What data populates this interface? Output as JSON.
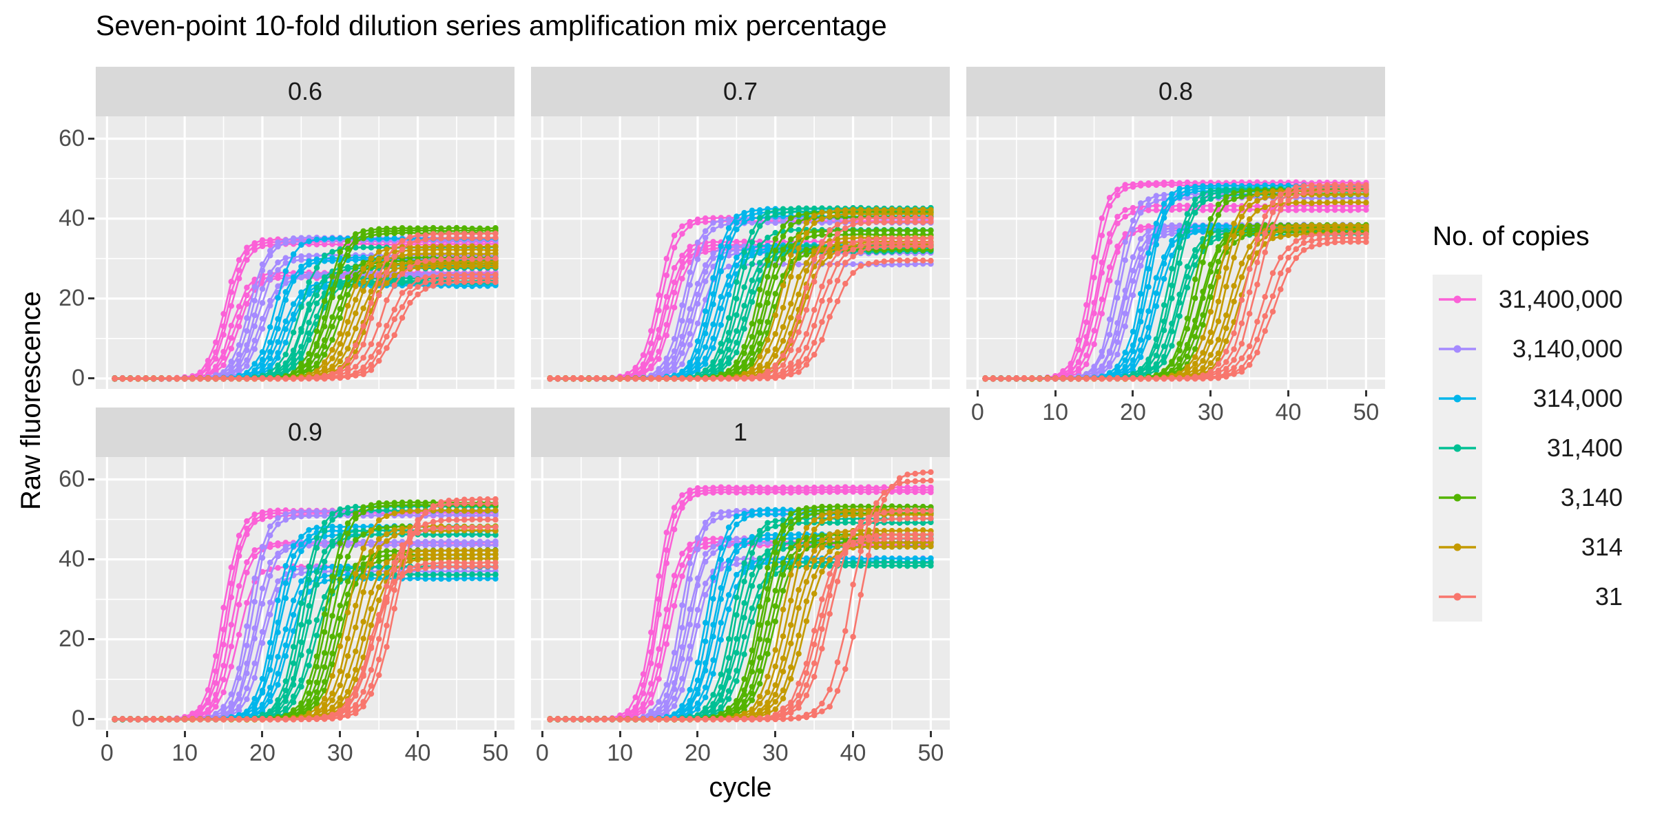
{
  "title": "Seven-point 10-fold dilution series amplification mix percentage",
  "axes": {
    "x_label": "cycle",
    "y_label": "Raw fluorescence",
    "x_ticks": [
      0,
      10,
      20,
      30,
      40,
      50
    ],
    "y_ticks": [
      0,
      20,
      40,
      60
    ]
  },
  "legend": {
    "title": "No. of copies",
    "items": [
      {
        "label": "31,400,000",
        "color": "#FB61D7"
      },
      {
        "label": "3,140,000",
        "color": "#A58AFF"
      },
      {
        "label": "314,000",
        "color": "#00B6EB"
      },
      {
        "label": "31,400",
        "color": "#00C094"
      },
      {
        "label": "3,140",
        "color": "#53B400"
      },
      {
        "label": "314",
        "color": "#C49A00"
      },
      {
        "label": "31",
        "color": "#F8766D"
      }
    ]
  },
  "style_colors": {
    "panel_background": "#EBEBEB",
    "strip_background": "#D9D9D9",
    "grid": "#FFFFFF",
    "tick_text": "#4D4D4D"
  },
  "chart_data": {
    "type": "line",
    "x_start": 1,
    "x_end": 50,
    "replicates_per_series": 6,
    "curve_model": "logistic: y = plateau / (1 + exp(-slope*(cycle - midpoint)))",
    "facets": [
      {
        "label": "0.6",
        "series": [
          {
            "copies": "31,400,000",
            "slope": 0.95,
            "midpoints": [
              15.1,
              15.5,
              15.8,
              16.1,
              16.5,
              16.9
            ],
            "plateaus": [
              34.8,
              34.2,
              33.6,
              26.5,
              25.8,
              25.2
            ]
          },
          {
            "copies": "3,140,000",
            "slope": 0.9,
            "midpoints": [
              18.3,
              18.7,
              19.0,
              19.3,
              19.7,
              20.1
            ],
            "plateaus": [
              35.2,
              34.6,
              30.8,
              29.8,
              26.2,
              25.6
            ]
          },
          {
            "copies": "314,000",
            "slope": 0.86,
            "midpoints": [
              21.6,
              22.0,
              22.3,
              22.6,
              23.0,
              23.4
            ],
            "plateaus": [
              35.0,
              30.2,
              29.6,
              24.2,
              23.6,
              23.2
            ]
          },
          {
            "copies": "31,400",
            "slope": 0.82,
            "midpoints": [
              24.8,
              25.2,
              25.5,
              25.8,
              26.2,
              26.6
            ],
            "plateaus": [
              32.8,
              28.2,
              27.6,
              25.0,
              24.4,
              24.0
            ]
          },
          {
            "copies": "3,140",
            "slope": 0.78,
            "midpoints": [
              28.0,
              28.4,
              28.7,
              29.0,
              29.4,
              29.8
            ],
            "plateaus": [
              37.6,
              37.0,
              36.4,
              30.2,
              29.4,
              28.8
            ]
          },
          {
            "copies": "314",
            "slope": 0.74,
            "midpoints": [
              30.8,
              31.4,
              31.9,
              32.4,
              33.0,
              33.5
            ],
            "plateaus": [
              33.0,
              32.2,
              31.2,
              29.2,
              28.6,
              28.0
            ]
          },
          {
            "copies": "31",
            "slope": 0.7,
            "midpoints": [
              33.8,
              34.5,
              35.2,
              35.9,
              36.6,
              37.2
            ],
            "plateaus": [
              36.2,
              35.2,
              30.0,
              26.0,
              25.0,
              24.2
            ]
          }
        ]
      },
      {
        "label": "0.7",
        "series": [
          {
            "copies": "31,400,000",
            "slope": 0.95,
            "midpoints": [
              14.9,
              15.3,
              15.6,
              15.9,
              16.3,
              16.7
            ],
            "plateaus": [
              40.2,
              39.4,
              34.2,
              33.4,
              32.8,
              32.2
            ]
          },
          {
            "copies": "3,140,000",
            "slope": 0.9,
            "midpoints": [
              18.2,
              18.6,
              18.9,
              19.2,
              19.6,
              20.0
            ],
            "plateaus": [
              40.0,
              39.0,
              33.2,
              32.2,
              31.4,
              28.6
            ]
          },
          {
            "copies": "314,000",
            "slope": 0.86,
            "midpoints": [
              21.5,
              21.9,
              22.2,
              22.5,
              22.9,
              23.3
            ],
            "plateaus": [
              42.4,
              41.6,
              40.6,
              33.4,
              32.6,
              32.0
            ]
          },
          {
            "copies": "31,400",
            "slope": 0.82,
            "midpoints": [
              24.7,
              25.1,
              25.4,
              25.7,
              26.1,
              26.5
            ],
            "plateaus": [
              42.6,
              41.8,
              37.2,
              33.2,
              32.4,
              31.8
            ]
          },
          {
            "copies": "3,140",
            "slope": 0.78,
            "midpoints": [
              27.9,
              28.3,
              28.6,
              28.9,
              29.3,
              29.7
            ],
            "plateaus": [
              41.6,
              40.4,
              37.0,
              36.0,
              33.0,
              32.2
            ]
          },
          {
            "copies": "314",
            "slope": 0.74,
            "midpoints": [
              30.7,
              31.3,
              31.8,
              32.3,
              32.9,
              33.4
            ],
            "plateaus": [
              42.2,
              41.2,
              35.2,
              34.2,
              33.6,
              33.0
            ]
          },
          {
            "copies": "31",
            "slope": 0.7,
            "midpoints": [
              33.6,
              34.3,
              35.0,
              35.7,
              36.4,
              37.0
            ],
            "plateaus": [
              40.2,
              39.2,
              35.0,
              34.0,
              33.2,
              29.6
            ]
          }
        ]
      },
      {
        "label": "0.8",
        "series": [
          {
            "copies": "31,400,000",
            "slope": 0.95,
            "midpoints": [
              14.5,
              14.9,
              15.2,
              15.5,
              15.9,
              16.3
            ],
            "plateaus": [
              49.0,
              48.4,
              43.2,
              42.2,
              38.2,
              37.6
            ]
          },
          {
            "copies": "3,140,000",
            "slope": 0.9,
            "midpoints": [
              17.9,
              18.3,
              18.6,
              18.9,
              19.3,
              19.7
            ],
            "plateaus": [
              46.2,
              45.2,
              38.4,
              37.8,
              37.2,
              36.6
            ]
          },
          {
            "copies": "314,000",
            "slope": 0.86,
            "midpoints": [
              21.3,
              21.7,
              22.0,
              22.3,
              22.7,
              23.1
            ],
            "plateaus": [
              48.2,
              47.6,
              47.0,
              38.2,
              37.6,
              37.0
            ]
          },
          {
            "copies": "31,400",
            "slope": 0.82,
            "midpoints": [
              24.6,
              25.0,
              25.3,
              25.6,
              26.0,
              26.4
            ],
            "plateaus": [
              47.4,
              46.8,
              46.0,
              37.2,
              36.6,
              36.0
            ]
          },
          {
            "copies": "3,140",
            "slope": 0.78,
            "midpoints": [
              27.9,
              28.3,
              28.6,
              28.9,
              29.3,
              29.7
            ],
            "plateaus": [
              47.2,
              46.2,
              38.4,
              37.8,
              37.2,
              36.6
            ]
          },
          {
            "copies": "314",
            "slope": 0.74,
            "midpoints": [
              30.8,
              31.4,
              31.9,
              32.4,
              33.0,
              33.5
            ],
            "plateaus": [
              47.0,
              46.0,
              44.0,
              38.2,
              37.4,
              36.2
            ]
          },
          {
            "copies": "31",
            "slope": 0.7,
            "midpoints": [
              34.6,
              35.3,
              36.0,
              36.7,
              37.4,
              38.0
            ],
            "plateaus": [
              48.4,
              47.8,
              47.0,
              36.2,
              35.2,
              34.2
            ]
          }
        ]
      },
      {
        "label": "0.9",
        "series": [
          {
            "copies": "31,400,000",
            "slope": 0.95,
            "midpoints": [
              14.9,
              15.3,
              15.6,
              15.9,
              16.3,
              16.7
            ],
            "plateaus": [
              52.2,
              51.6,
              51.0,
              44.2,
              43.6,
              38.2
            ]
          },
          {
            "copies": "3,140,000",
            "slope": 0.9,
            "midpoints": [
              18.2,
              18.6,
              18.9,
              19.2,
              19.6,
              20.0
            ],
            "plateaus": [
              52.0,
              51.0,
              44.4,
              43.6,
              38.0,
              37.0
            ]
          },
          {
            "copies": "314,000",
            "slope": 0.86,
            "midpoints": [
              21.5,
              21.9,
              22.2,
              22.5,
              22.9,
              23.3
            ],
            "plateaus": [
              48.2,
              47.2,
              46.2,
              38.2,
              36.2,
              35.2
            ]
          },
          {
            "copies": "31,400",
            "slope": 0.82,
            "midpoints": [
              24.8,
              25.2,
              25.5,
              25.8,
              26.2,
              26.6
            ],
            "plateaus": [
              53.2,
              52.2,
              47.2,
              46.2,
              38.2,
              36.2
            ]
          },
          {
            "copies": "3,140",
            "slope": 0.78,
            "midpoints": [
              28.1,
              28.5,
              28.8,
              29.1,
              29.5,
              29.9
            ],
            "plateaus": [
              54.2,
              53.6,
              48.2,
              42.2,
              41.2,
              40.2
            ]
          },
          {
            "copies": "314",
            "slope": 0.74,
            "midpoints": [
              30.9,
              31.5,
              32.0,
              32.5,
              33.1,
              33.6
            ],
            "plateaus": [
              52.2,
              48.2,
              47.2,
              42.2,
              41.2,
              40.2
            ]
          },
          {
            "copies": "31",
            "slope": 0.7,
            "midpoints": [
              37.0,
              36.4,
              35.5,
              34.8,
              34.3,
              33.9
            ],
            "plateaus": [
              55.0,
              54.0,
              50.0,
              48.0,
              39.2,
              38.2
            ]
          }
        ]
      },
      {
        "label": "1",
        "series": [
          {
            "copies": "31,400,000",
            "slope": 0.95,
            "midpoints": [
              14.5,
              14.9,
              15.2,
              15.5,
              15.9,
              16.3
            ],
            "plateaus": [
              58.0,
              57.4,
              56.8,
              45.2,
              44.4,
              43.6
            ]
          },
          {
            "copies": "3,140,000",
            "slope": 0.9,
            "midpoints": [
              17.8,
              18.2,
              18.5,
              18.8,
              19.2,
              19.6
            ],
            "plateaus": [
              52.2,
              51.2,
              45.2,
              44.2,
              40.2,
              39.2
            ]
          },
          {
            "copies": "314,000",
            "slope": 0.86,
            "midpoints": [
              21.2,
              21.6,
              21.9,
              22.2,
              22.6,
              23.0
            ],
            "plateaus": [
              52.4,
              51.4,
              46.2,
              45.2,
              40.2,
              39.4
            ]
          },
          {
            "copies": "31,400",
            "slope": 0.82,
            "midpoints": [
              24.5,
              24.9,
              25.2,
              25.5,
              25.9,
              26.3
            ],
            "plateaus": [
              50.2,
              49.2,
              44.2,
              43.2,
              39.2,
              38.4
            ]
          },
          {
            "copies": "3,140",
            "slope": 0.78,
            "midpoints": [
              27.9,
              28.3,
              28.6,
              28.9,
              29.3,
              29.7
            ],
            "plateaus": [
              53.2,
              52.4,
              51.6,
              46.2,
              45.2,
              44.2
            ]
          },
          {
            "copies": "314",
            "slope": 0.74,
            "midpoints": [
              30.9,
              31.5,
              32.0,
              32.5,
              33.1,
              33.6
            ],
            "plateaus": [
              52.2,
              51.2,
              47.2,
              46.2,
              44.2,
              43.2
            ]
          },
          {
            "copies": "31",
            "slope": 0.7,
            "midpoints": [
              41.0,
              39.7,
              37.0,
              36.3,
              35.6,
              35.1
            ],
            "plateaus": [
              62.0,
              59.8,
              52.2,
              50.2,
              46.2,
              45.2
            ]
          }
        ]
      }
    ]
  }
}
